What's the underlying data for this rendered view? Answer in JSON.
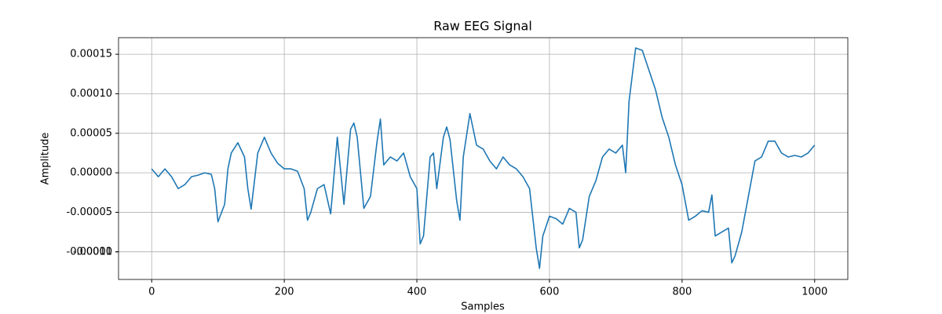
{
  "chart_data": {
    "type": "line",
    "title": "Raw EEG Signal",
    "x_label": "Samples",
    "y_label": "Amplitude",
    "x": [
      0,
      10,
      20,
      30,
      40,
      50,
      60,
      70,
      80,
      90,
      95,
      100,
      110,
      115,
      120,
      130,
      140,
      145,
      150,
      160,
      170,
      180,
      190,
      200,
      210,
      220,
      230,
      235,
      240,
      250,
      260,
      270,
      280,
      290,
      300,
      305,
      310,
      320,
      330,
      340,
      345,
      350,
      360,
      370,
      380,
      390,
      400,
      405,
      410,
      420,
      425,
      430,
      440,
      445,
      450,
      460,
      465,
      470,
      480,
      490,
      500,
      510,
      520,
      530,
      540,
      550,
      560,
      570,
      580,
      585,
      590,
      600,
      610,
      620,
      630,
      640,
      645,
      650,
      660,
      670,
      680,
      690,
      700,
      710,
      715,
      720,
      730,
      740,
      750,
      760,
      770,
      780,
      790,
      800,
      810,
      820,
      830,
      840,
      845,
      850,
      860,
      870,
      875,
      880,
      890,
      900,
      910,
      920,
      930,
      940,
      950,
      960,
      970,
      980,
      990,
      1000
    ],
    "series": [
      {
        "name": "EEG",
        "color": "#1f77b4",
        "values": [
          5e-06,
          -5e-06,
          5e-06,
          -5e-06,
          -2e-05,
          -1.5e-05,
          -5e-06,
          -3e-06,
          0,
          -2e-06,
          -2e-05,
          -6.2e-05,
          -4e-05,
          5e-06,
          2.5e-05,
          3.8e-05,
          2e-05,
          -2e-05,
          -4.6e-05,
          2.5e-05,
          4.5e-05,
          2.5e-05,
          1.2e-05,
          5e-06,
          5e-06,
          2e-06,
          -2e-05,
          -6e-05,
          -5e-05,
          -2e-05,
          -1.5e-05,
          -5.2e-05,
          4.5e-05,
          -4e-05,
          5.5e-05,
          6.3e-05,
          4.5e-05,
          -4.5e-05,
          -3e-05,
          4e-05,
          6.8e-05,
          1e-05,
          2e-05,
          1.5e-05,
          2.5e-05,
          -5e-06,
          -2e-05,
          -9e-05,
          -8e-05,
          2e-05,
          2.5e-05,
          -2e-05,
          4.5e-05,
          5.8e-05,
          4.2e-05,
          -3.5e-05,
          -6e-05,
          2e-05,
          7.5e-05,
          3.5e-05,
          3e-05,
          1.5e-05,
          5e-06,
          2e-05,
          1e-05,
          5e-06,
          -5e-06,
          -2e-05,
          -9.5e-05,
          -0.000121,
          -8e-05,
          -5.5e-05,
          -5.8e-05,
          -6.5e-05,
          -4.5e-05,
          -5e-05,
          -9.5e-05,
          -8.5e-05,
          -3e-05,
          -1e-05,
          2e-05,
          3e-05,
          2.5e-05,
          3.5e-05,
          0,
          9e-05,
          0.000158,
          0.000155,
          0.00013,
          0.000105,
          7e-05,
          4.5e-05,
          1e-05,
          -1.5e-05,
          -6e-05,
          -5.5e-05,
          -4.8e-05,
          -5e-05,
          -2.8e-05,
          -8e-05,
          -7.5e-05,
          -7e-05,
          -0.000114,
          -0.000105,
          -7.5e-05,
          -3e-05,
          1.5e-05,
          2e-05,
          4e-05,
          4e-05,
          2.5e-05,
          2e-05,
          2.2e-05,
          2e-05,
          2.5e-05,
          3.5e-05
        ]
      }
    ],
    "xlim": [
      -50,
      1050
    ],
    "ylim": [
      -0.000135,
      0.000171
    ],
    "xticks": [
      0,
      200,
      400,
      600,
      800,
      1000
    ],
    "yticks": [
      -0.0001,
      {
        "value": -0.0001,
        "label": "-0.00010"
      },
      -5e-05,
      {
        "value": 0,
        "label": "0.00000"
      },
      5e-05,
      {
        "value": 0.0001,
        "label": "0.00010"
      },
      0.00015
    ],
    "grid": true
  }
}
